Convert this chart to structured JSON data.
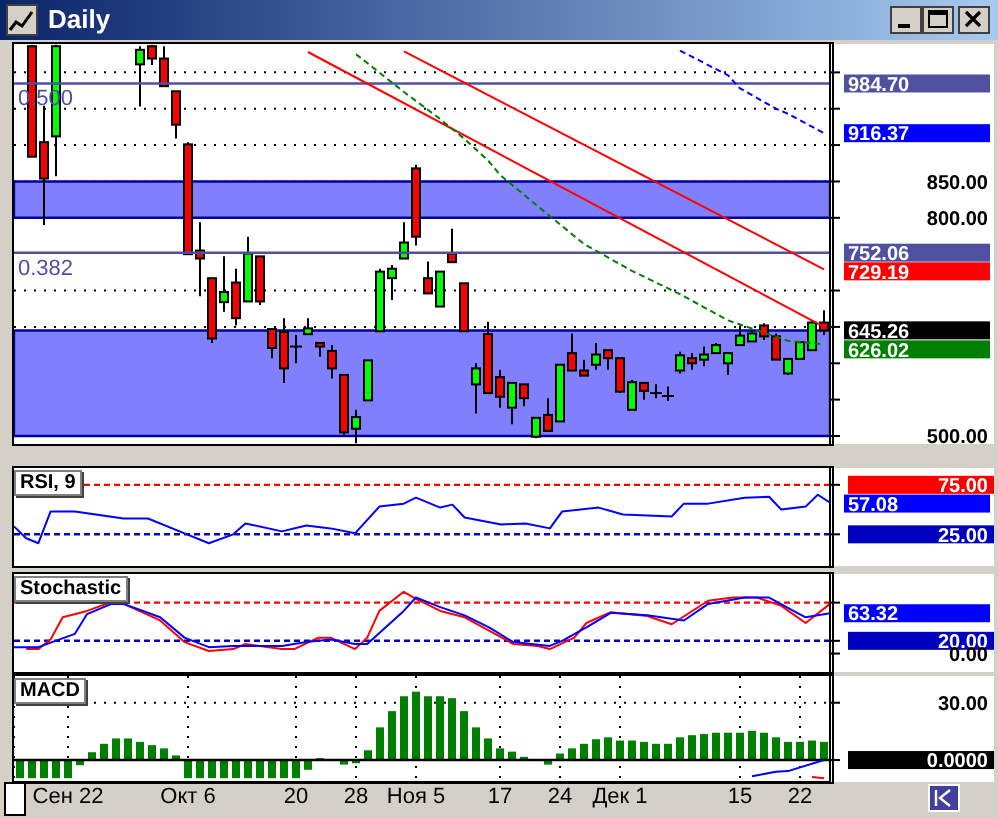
{
  "chart_data": [
    {
      "type": "candlestick",
      "title": "Daily",
      "categories": [
        null,
        null,
        null,
        null,
        null,
        null,
        null,
        null,
        null,
        null,
        null,
        null,
        null,
        null,
        null,
        null,
        null,
        null,
        null,
        null,
        null,
        null,
        null,
        null,
        null,
        null,
        null,
        null,
        null,
        null,
        null,
        null,
        null,
        null,
        null,
        null,
        null,
        null,
        null,
        null,
        null,
        null,
        null,
        null,
        null,
        null,
        null,
        null,
        null,
        null,
        null,
        null,
        null,
        null,
        null,
        null,
        null,
        null,
        null,
        null,
        null,
        null,
        null,
        null,
        null,
        null,
        null,
        null
      ],
      "ohlc": [
        null,
        [
          1036,
          1038,
          884,
          884
        ],
        [
          904,
          954,
          790,
          854
        ],
        [
          912,
          1038,
          857,
          1036
        ],
        null,
        null,
        null,
        null,
        null,
        null,
        [
          1011,
          1036,
          953,
          1031
        ],
        [
          1036,
          1038,
          1010,
          1019
        ],
        [
          1019,
          1036,
          981,
          981
        ],
        [
          974,
          974,
          909,
          928
        ],
        [
          901,
          904,
          750,
          750
        ],
        [
          755,
          794,
          692,
          744
        ],
        [
          717,
          717,
          628,
          634
        ],
        [
          684,
          747,
          671,
          698
        ],
        [
          711,
          730,
          652,
          662
        ],
        [
          685,
          774,
          685,
          751
        ],
        [
          747,
          747,
          680,
          685
        ],
        [
          647,
          647,
          607,
          621
        ],
        [
          643,
          662,
          573,
          593
        ],
        [
          623,
          639,
          600,
          622
        ],
        [
          640,
          662,
          640,
          648
        ],
        [
          628,
          628,
          609,
          623
        ],
        [
          617,
          625,
          579,
          593
        ],
        [
          584,
          584,
          502,
          505
        ],
        [
          510,
          536,
          490,
          526
        ],
        [
          549,
          604,
          549,
          604
        ],
        [
          644,
          730,
          644,
          726
        ],
        [
          717,
          735,
          687,
          730
        ],
        [
          744,
          794,
          744,
          766
        ],
        [
          868,
          873,
          762,
          774
        ],
        [
          717,
          740,
          696,
          696
        ],
        [
          678,
          726,
          678,
          726
        ],
        [
          751,
          785,
          739,
          739
        ],
        [
          710,
          710,
          644,
          644
        ],
        [
          571,
          600,
          531,
          593
        ],
        [
          640,
          657,
          559,
          559
        ],
        [
          581,
          591,
          539,
          554
        ],
        [
          539,
          573,
          516,
          573
        ],
        [
          571,
          571,
          541,
          552
        ],
        [
          499,
          525,
          497,
          525
        ],
        [
          529,
          552,
          507,
          507
        ],
        [
          520,
          598,
          520,
          598
        ],
        [
          614,
          641,
          590,
          590
        ],
        [
          590,
          605,
          583,
          583
        ],
        [
          598,
          628,
          591,
          612
        ],
        [
          618,
          618,
          591,
          607
        ],
        [
          607,
          607,
          559,
          561
        ],
        [
          536,
          577,
          536,
          574
        ],
        [
          573,
          573,
          550,
          562
        ],
        [
          559,
          571,
          552,
          558
        ],
        [
          555,
          568,
          548,
          554
        ],
        [
          590,
          616,
          586,
          611
        ],
        [
          607,
          614,
          591,
          600
        ],
        [
          605,
          623,
          596,
          612
        ],
        [
          614,
          628,
          614,
          625
        ],
        [
          600,
          614,
          584,
          614
        ],
        [
          625,
          652,
          625,
          638
        ],
        [
          630,
          644,
          630,
          641
        ],
        [
          652,
          655,
          632,
          637
        ],
        [
          637,
          641,
          605,
          605
        ],
        [
          586,
          606,
          584,
          606
        ],
        [
          606,
          629,
          606,
          629
        ],
        [
          618,
          658,
          618,
          656
        ],
        [
          656,
          673,
          639,
          645.26
        ]
      ],
      "colors": [
        null,
        "#ff0000",
        "#ff0000",
        "#00ff00",
        null,
        null,
        null,
        null,
        null,
        null,
        "#00ff00",
        "#ff0000",
        "#ff0000",
        "#ff0000",
        "#ff0000",
        "#ff0000",
        "#ff0000",
        "#00ff00",
        "#ff0000",
        "#00ff00",
        "#ff0000",
        "#ff0000",
        "#ff0000",
        "#000000",
        "#00ff00",
        "#ff0000",
        "#ff0000",
        "#ff0000",
        "#00ff00",
        "#00ff00",
        "#00ff00",
        "#00ff00",
        "#00ff00",
        "#ff0000",
        "#ff0000",
        "#00ff00",
        "#ff0000",
        "#ff0000",
        "#00ff00",
        "#ff0000",
        "#ff0000",
        "#00ff00",
        "#ff0000",
        "#00ff00",
        "#ff0000",
        "#00ff00",
        "#ff0000",
        "#ff0000",
        "#00ff00",
        "#ff0000",
        "#ff0000",
        "#00ff00",
        "#ff0000",
        "#000000",
        "#000000",
        "#00ff00",
        "#ff0000",
        "#00ff00",
        "#00ff00",
        "#00ff00",
        "#00ff00",
        "#00ff00",
        "#ff0000",
        "#ff0000",
        "#00ff00",
        "#00ff00",
        "#00ff00",
        "#ff0000"
      ],
      "color": "#000000",
      "value_labels": [
        null,
        null,
        null,
        null,
        null,
        null,
        null,
        null,
        null,
        null,
        null,
        null,
        null,
        null,
        null,
        null,
        null,
        null,
        null,
        null,
        null,
        null,
        null,
        null,
        null,
        null,
        null,
        null,
        null,
        null,
        null,
        null,
        null,
        null,
        null,
        null,
        null,
        null,
        null,
        null,
        null,
        null,
        null,
        null,
        null,
        null,
        null,
        null,
        null,
        null,
        null,
        null,
        null,
        null,
        null,
        null,
        null,
        null,
        null,
        null,
        null,
        null,
        null,
        null,
        null,
        null,
        null,
        "645.26"
      ],
      "series": [
        {
          "type": "line",
          "color": "#ff0000",
          "values": [
            null,
            null,
            null,
            null,
            null,
            null,
            null,
            null,
            null,
            null,
            null,
            null,
            null,
            null,
            null,
            null,
            null,
            null,
            null,
            null,
            null,
            null,
            null,
            null,
            null,
            null,
            null,
            null,
            null,
            null,
            null,
            null,
            1029,
            null,
            null,
            null,
            null,
            null,
            null,
            null,
            null,
            null,
            null,
            null,
            null,
            null,
            null,
            null,
            null,
            null,
            null,
            null,
            null,
            null,
            null,
            null,
            null,
            null,
            null,
            null,
            null,
            null,
            null,
            null,
            null,
            null,
            null,
            729.19
          ],
          "value_labels": [
            null,
            null,
            null,
            null,
            null,
            null,
            null,
            null,
            null,
            null,
            null,
            null,
            null,
            null,
            null,
            null,
            null,
            null,
            null,
            null,
            null,
            null,
            null,
            null,
            null,
            null,
            null,
            null,
            null,
            null,
            null,
            null,
            null,
            null,
            null,
            null,
            null,
            null,
            null,
            null,
            null,
            null,
            null,
            null,
            null,
            null,
            null,
            null,
            null,
            null,
            null,
            null,
            null,
            null,
            null,
            null,
            null,
            null,
            null,
            null,
            null,
            null,
            null,
            null,
            null,
            null,
            null,
            "729.19"
          ]
        },
        {
          "type": "line",
          "color": "#ff0000",
          "values": [
            null,
            null,
            null,
            null,
            null,
            null,
            null,
            null,
            null,
            null,
            null,
            null,
            null,
            null,
            null,
            null,
            null,
            null,
            null,
            null,
            null,
            null,
            null,
            null,
            1028,
            null,
            null,
            null,
            null,
            null,
            null,
            null,
            null,
            null,
            null,
            null,
            null,
            null,
            null,
            null,
            null,
            null,
            null,
            null,
            null,
            null,
            null,
            null,
            null,
            null,
            null,
            null,
            null,
            null,
            null,
            null,
            null,
            null,
            null,
            null,
            null,
            null,
            null,
            null,
            null,
            null,
            null,
            650
          ]
        },
        {
          "type": "line",
          "color": "#008000",
          "line_style": "dashed",
          "values": [
            null,
            null,
            null,
            null,
            null,
            null,
            null,
            null,
            null,
            null,
            null,
            null,
            null,
            null,
            null,
            null,
            null,
            null,
            null,
            null,
            null,
            null,
            null,
            null,
            null,
            null,
            null,
            null,
            1025,
            null,
            null,
            null,
            973,
            null,
            null,
            936,
            null,
            909,
            null,
            879,
            859,
            null,
            null,
            818,
            null,
            null,
            null,
            764,
            null,
            null,
            null,
            727,
            null,
            null,
            null,
            695,
            null,
            null,
            null,
            659,
            null,
            null,
            null,
            null,
            631,
            null,
            null,
            626.02
          ],
          "value_labels": [
            null,
            null,
            null,
            null,
            null,
            null,
            null,
            null,
            null,
            null,
            null,
            null,
            null,
            null,
            null,
            null,
            null,
            null,
            null,
            null,
            null,
            null,
            null,
            null,
            null,
            null,
            null,
            null,
            null,
            null,
            null,
            null,
            null,
            null,
            null,
            null,
            null,
            null,
            null,
            null,
            null,
            null,
            null,
            null,
            null,
            null,
            null,
            null,
            null,
            null,
            null,
            null,
            null,
            null,
            null,
            null,
            null,
            null,
            null,
            null,
            null,
            null,
            null,
            null,
            null,
            null,
            null,
            "626.02"
          ]
        },
        {
          "type": "line",
          "color": "#0000ff",
          "line_style": "dashed",
          "values": [
            null,
            null,
            null,
            null,
            null,
            null,
            null,
            null,
            null,
            null,
            null,
            null,
            null,
            null,
            null,
            null,
            null,
            null,
            null,
            null,
            null,
            null,
            null,
            null,
            null,
            null,
            null,
            null,
            null,
            null,
            null,
            null,
            null,
            null,
            null,
            null,
            null,
            null,
            null,
            null,
            null,
            null,
            null,
            null,
            null,
            null,
            null,
            null,
            null,
            null,
            null,
            null,
            null,
            null,
            null,
            1030,
            null,
            null,
            null,
            996,
            978,
            null,
            null,
            950,
            943,
            null,
            null,
            916.37
          ],
          "value_labels": [
            null,
            null,
            null,
            null,
            null,
            null,
            null,
            null,
            null,
            null,
            null,
            null,
            null,
            null,
            null,
            null,
            null,
            null,
            null,
            null,
            null,
            null,
            null,
            null,
            null,
            null,
            null,
            null,
            null,
            null,
            null,
            null,
            null,
            null,
            null,
            null,
            null,
            null,
            null,
            null,
            null,
            null,
            null,
            null,
            null,
            null,
            null,
            null,
            null,
            null,
            null,
            null,
            null,
            null,
            null,
            null,
            null,
            null,
            null,
            null,
            null,
            null,
            null,
            null,
            null,
            null,
            null,
            "916.37"
          ]
        }
      ],
      "ylim": [
        489,
        1039
      ],
      "yticks": [
        {
          "value": 1000,
          "label": null
        },
        {
          "value": 950,
          "label": null
        },
        {
          "value": 900,
          "label": null
        },
        {
          "value": 850,
          "label": "850.00"
        },
        {
          "value": 800,
          "label": "800.00"
        },
        {
          "value": 700,
          "label": null
        },
        {
          "value": 650,
          "label": null
        },
        {
          "value": 600,
          "label": null
        },
        {
          "value": 550,
          "label": null
        },
        {
          "value": 500,
          "label": "500.00"
        }
      ],
      "ref_lines": [
        {
          "axis": "y",
          "value": 984.7,
          "label": "984.70",
          "color": "#5050a0"
        },
        {
          "axis": "y",
          "value": 752.06,
          "label": "752.06",
          "color": "#5050a0"
        }
      ],
      "annotations": [
        {
          "text": "0.500",
          "y": 984.7
        },
        {
          "text": "0.382",
          "y": 752.06
        }
      ],
      "bands": [
        {
          "axis": "y",
          "from": 800,
          "to": 850,
          "color": "#8080ff"
        },
        {
          "axis": "y",
          "from": 500,
          "to": 645,
          "color": "#8080ff"
        }
      ],
      "grid": "y",
      "legend": false,
      "tick_labels": "y",
      "marker": "none"
    },
    {
      "type": "line",
      "title": "RSI, 9",
      "categories": [
        null,
        null,
        null,
        null,
        null,
        null,
        null,
        null,
        null,
        null,
        null,
        null,
        null,
        null,
        null,
        null,
        null,
        null,
        null,
        null,
        null,
        null,
        null,
        null,
        null,
        null,
        null,
        null,
        null,
        null,
        null,
        null,
        null,
        null,
        null,
        null,
        null,
        null,
        null,
        null,
        null,
        null,
        null,
        null,
        null,
        null,
        null,
        null,
        null,
        null,
        null,
        null,
        null,
        null,
        null,
        null,
        null,
        null,
        null,
        null,
        null,
        null,
        null,
        null,
        null,
        null,
        null,
        null
      ],
      "series": [
        {
          "color": "#0000ff",
          "values": [
            33,
            21,
            16,
            48,
            null,
            48,
            null,
            null,
            null,
            41,
            null,
            41,
            null,
            null,
            26,
            null,
            16,
            null,
            25,
            36,
            null,
            null,
            28,
            null,
            34,
            null,
            31,
            null,
            26,
            null,
            53,
            null,
            56,
            62,
            null,
            52,
            55,
            42,
            null,
            null,
            35,
            null,
            36,
            null,
            31,
            48,
            null,
            null,
            52,
            null,
            45,
            null,
            null,
            null,
            43,
            56,
            null,
            56,
            null,
            null,
            62,
            null,
            63,
            50,
            null,
            53,
            65,
            57.08
          ],
          "value_labels": [
            null,
            null,
            null,
            null,
            null,
            null,
            null,
            null,
            null,
            null,
            null,
            null,
            null,
            null,
            null,
            null,
            null,
            null,
            null,
            null,
            null,
            null,
            null,
            null,
            null,
            null,
            null,
            null,
            null,
            null,
            null,
            null,
            null,
            null,
            null,
            null,
            null,
            null,
            null,
            null,
            null,
            null,
            null,
            null,
            null,
            null,
            null,
            null,
            null,
            null,
            null,
            null,
            null,
            null,
            null,
            null,
            null,
            null,
            null,
            null,
            null,
            null,
            null,
            null,
            null,
            null,
            null,
            "57.08"
          ]
        }
      ],
      "ylim": [
        -7,
        92
      ],
      "yticks": [
        {
          "value": 75,
          "label": "75.00"
        },
        {
          "value": 25,
          "label": "25.00"
        }
      ],
      "ref_lines": [
        {
          "axis": "y",
          "value": 75,
          "color": "#ff0000",
          "line_style": "dashed"
        },
        {
          "axis": "y",
          "value": 25,
          "color": "#0000c0",
          "line_style": "dashed"
        }
      ],
      "legend": false,
      "tick_labels": "y",
      "marker": "none"
    },
    {
      "type": "line",
      "title": "Stochastic",
      "categories": [
        null,
        null,
        null,
        null,
        null,
        null,
        null,
        null,
        null,
        null,
        null,
        null,
        null,
        null,
        null,
        null,
        null,
        null,
        null,
        null,
        null,
        null,
        null,
        null,
        null,
        null,
        null,
        null,
        null,
        null,
        null,
        null,
        null,
        null,
        null,
        null,
        null,
        null,
        null,
        null,
        null,
        null,
        null,
        null,
        null,
        null,
        null,
        null,
        null,
        null,
        null,
        null,
        null,
        null,
        null,
        null,
        null,
        null,
        null,
        null,
        null,
        null,
        null,
        null,
        null,
        null,
        null,
        null
      ],
      "series": [
        {
          "color": "#ff0000",
          "values": [
            null,
            7,
            7,
            22,
            57,
            null,
            67,
            null,
            81,
            78,
            null,
            null,
            52,
            null,
            18,
            null,
            4,
            null,
            7,
            15,
            null,
            null,
            7,
            7,
            null,
            25,
            25,
            null,
            7,
            25,
            67,
            null,
            97,
            86,
            null,
            67,
            null,
            57,
            null,
            36,
            null,
            15,
            null,
            12,
            7,
            null,
            25,
            48,
            null,
            65,
            null,
            null,
            59,
            null,
            46,
            null,
            null,
            83,
            null,
            88,
            null,
            88,
            null,
            75,
            null,
            48,
            null,
            78
          ]
        },
        {
          "color": "#0000ff",
          "values": [
            10,
            null,
            10,
            null,
            null,
            31,
            62,
            null,
            78,
            78,
            null,
            null,
            57,
            null,
            25,
            null,
            10,
            null,
            12,
            null,
            null,
            null,
            12,
            null,
            18,
            null,
            22,
            null,
            15,
            15,
            null,
            null,
            67,
            88,
            null,
            73,
            null,
            60,
            null,
            41,
            null,
            18,
            null,
            null,
            12,
            20,
            null,
            41,
            null,
            64,
            null,
            null,
            60,
            null,
            null,
            52,
            null,
            78,
            null,
            null,
            88,
            null,
            88,
            null,
            67,
            57,
            null,
            63.32
          ],
          "value_labels": [
            null,
            null,
            null,
            null,
            null,
            null,
            null,
            null,
            null,
            null,
            null,
            null,
            null,
            null,
            null,
            null,
            null,
            null,
            null,
            null,
            null,
            null,
            null,
            null,
            null,
            null,
            null,
            null,
            null,
            null,
            null,
            null,
            null,
            null,
            null,
            null,
            null,
            null,
            null,
            null,
            null,
            null,
            null,
            null,
            null,
            null,
            null,
            null,
            null,
            null,
            null,
            null,
            null,
            null,
            null,
            null,
            null,
            null,
            null,
            null,
            null,
            null,
            null,
            null,
            null,
            null,
            null,
            "63.32"
          ]
        }
      ],
      "ylim": [
        -29,
        125
      ],
      "yticks": [
        {
          "value": 80,
          "label": null
        },
        {
          "value": 20,
          "label": "20.00"
        },
        {
          "value": 0,
          "label": "0.00"
        }
      ],
      "ref_lines": [
        {
          "axis": "y",
          "value": 80,
          "color": "#ff0000",
          "line_style": "dashed"
        },
        {
          "axis": "y",
          "value": 20,
          "color": "#0000c0",
          "line_style": "dashed"
        }
      ],
      "legend": false,
      "tick_labels": "y",
      "marker": "none"
    },
    {
      "type": "bar",
      "title": "MACD",
      "categories": [
        null,
        null,
        null,
        null,
        "Сен 22",
        null,
        null,
        null,
        null,
        null,
        null,
        null,
        null,
        null,
        "Окт 6",
        null,
        null,
        null,
        null,
        null,
        null,
        null,
        null,
        "20",
        null,
        null,
        null,
        null,
        "28",
        null,
        null,
        null,
        null,
        "Ноя 5",
        null,
        null,
        null,
        null,
        null,
        null,
        "17",
        null,
        null,
        null,
        null,
        "24",
        null,
        null,
        null,
        null,
        "Дек 1",
        null,
        null,
        null,
        null,
        null,
        null,
        null,
        null,
        null,
        "15",
        null,
        null,
        null,
        null,
        "22",
        null,
        null
      ],
      "values": [
        -9.5,
        -9.5,
        -9.5,
        -9.5,
        -9.5,
        -2.7,
        4.1,
        8.5,
        11.3,
        11.3,
        9.5,
        7.8,
        6.1,
        2.4,
        -9.5,
        -9.5,
        -9.5,
        -9.5,
        -9.5,
        -9.5,
        -9.5,
        -9.5,
        -9.5,
        -9.5,
        -5.1,
        1.0,
        null,
        -2.4,
        -1.7,
        5.1,
        17.1,
        25.6,
        33.4,
        35.8,
        33.4,
        33.4,
        32.4,
        25.6,
        17.1,
        11.3,
        6.1,
        4.4,
        1.7,
        null,
        -2.4,
        3.4,
        6.1,
        8.5,
        10.9,
        11.9,
        10.2,
        10.2,
        9.5,
        8.5,
        8.5,
        11.9,
        13.0,
        13.6,
        14.3,
        14.3,
        14.3,
        15.3,
        14.3,
        11.9,
        9.5,
        9.5,
        10.2,
        9.5
      ],
      "color": "#008000",
      "series": [
        {
          "type": "line",
          "color": "#0000ff",
          "values": [
            null,
            null,
            null,
            null,
            null,
            null,
            null,
            null,
            null,
            null,
            null,
            null,
            null,
            null,
            null,
            null,
            null,
            null,
            null,
            null,
            null,
            null,
            null,
            null,
            null,
            null,
            null,
            null,
            null,
            null,
            null,
            null,
            null,
            null,
            null,
            null,
            null,
            null,
            null,
            null,
            null,
            null,
            null,
            null,
            null,
            null,
            null,
            null,
            null,
            null,
            null,
            null,
            null,
            null,
            null,
            null,
            null,
            null,
            null,
            null,
            null,
            -8.5,
            null,
            -6.1,
            -5.8,
            null,
            null,
            0
          ]
        },
        {
          "type": "line",
          "color": "#ff0000",
          "values": [
            null,
            null,
            null,
            null,
            null,
            null,
            null,
            null,
            null,
            null,
            null,
            null,
            null,
            null,
            null,
            null,
            null,
            null,
            null,
            null,
            null,
            null,
            null,
            null,
            null,
            null,
            null,
            null,
            null,
            null,
            null,
            null,
            null,
            null,
            null,
            null,
            null,
            null,
            null,
            null,
            null,
            null,
            null,
            null,
            null,
            null,
            null,
            null,
            null,
            null,
            null,
            null,
            null,
            null,
            null,
            null,
            null,
            null,
            null,
            null,
            null,
            null,
            null,
            null,
            null,
            null,
            -8.9,
            -9.5
          ]
        }
      ],
      "ylim": [
        -11.5,
        44
      ],
      "yticks": [
        {
          "value": 30,
          "label": "30.00"
        },
        {
          "value": 0,
          "label": "0.0000"
        }
      ],
      "ref_lines": [
        {
          "axis": "y",
          "value": 0,
          "color": "#000000"
        }
      ],
      "grid": true,
      "legend": false,
      "marker": "none"
    }
  ]
}
